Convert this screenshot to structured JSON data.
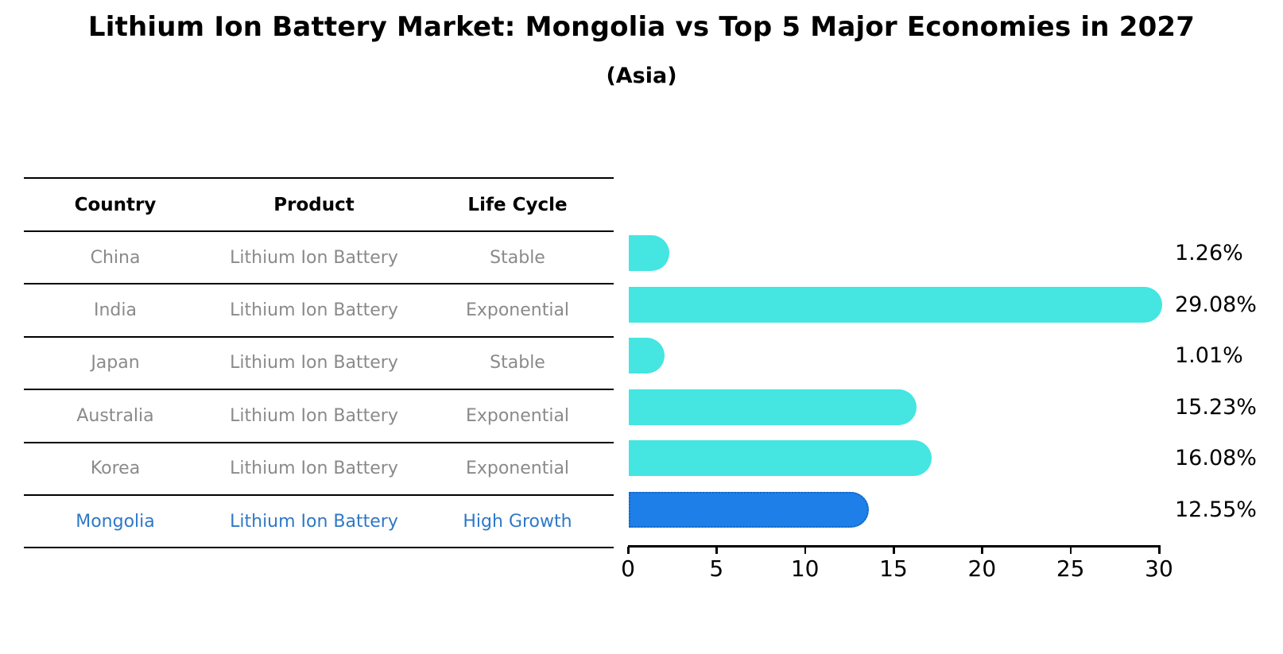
{
  "header": {
    "title": "Lithium Ion Battery Market: Mongolia vs Top 5 Major Economies in 2027",
    "subtitle": "(Asia)"
  },
  "table": {
    "headers": [
      "Country",
      "Product",
      "Life Cycle"
    ],
    "rows": [
      {
        "country": "China",
        "product": "Lithium Ion Battery",
        "life_cycle": "Stable",
        "highlight": false
      },
      {
        "country": "India",
        "product": "Lithium Ion Battery",
        "life_cycle": "Exponential",
        "highlight": false
      },
      {
        "country": "Japan",
        "product": "Lithium Ion Battery",
        "life_cycle": "Stable",
        "highlight": false
      },
      {
        "country": "Australia",
        "product": "Lithium Ion Battery",
        "life_cycle": "Exponential",
        "highlight": false
      },
      {
        "country": "Korea",
        "product": "Lithium Ion Battery",
        "life_cycle": "Exponential",
        "highlight": false
      },
      {
        "country": "Mongolia",
        "product": "Lithium Ion Battery",
        "life_cycle": "High Growth",
        "highlight": true
      }
    ],
    "text_color": "#8A8A8A",
    "highlight_text_color": "#2E78C8"
  },
  "chart_data": {
    "type": "bar",
    "orientation": "horizontal",
    "title": "Lithium Ion Battery Market: Mongolia vs Top 5 Major Economies in 2027",
    "subtitle": "(Asia)",
    "categories": [
      "China",
      "India",
      "Japan",
      "Australia",
      "Korea",
      "Mongolia"
    ],
    "values": [
      1.26,
      29.08,
      1.01,
      15.23,
      16.08,
      12.55
    ],
    "value_labels": [
      "1.26%",
      "29.08%",
      "1.01%",
      "15.23%",
      "16.08%",
      "12.55%"
    ],
    "xlabel": "",
    "ylabel": "",
    "xlim": [
      0,
      30
    ],
    "x_ticks": [
      0,
      5,
      10,
      15,
      20,
      25,
      30
    ],
    "grid": false,
    "legend": false,
    "bar_color": "#45E5E1",
    "highlight_bar_color": "#1E7FE8",
    "highlight_border_color": "#1565C0",
    "highlight_index": 5
  }
}
